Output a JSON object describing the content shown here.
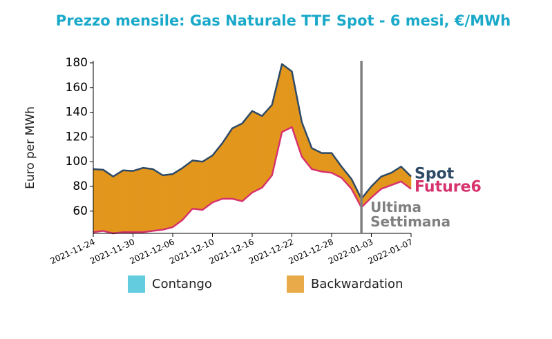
{
  "chart_data": {
    "type": "line",
    "title": "Prezzo mensile: Gas Naturale TTF Spot - 6 mesi, €/MWh",
    "y_label": "Euro per MWh",
    "categories": [
      "2021-11-24",
      null,
      null,
      null,
      "2021-11-30",
      null,
      null,
      null,
      "2021-12-06",
      null,
      null,
      null,
      "2021-12-10",
      null,
      null,
      null,
      "2021-12-16",
      null,
      null,
      null,
      "2021-12-22",
      null,
      null,
      null,
      "2021-12-28",
      null,
      null,
      null,
      "2022-01-03",
      null,
      null,
      null,
      "2022-01-07"
    ],
    "series": [
      {
        "name": "Spot",
        "color": "#2e4a66",
        "values": [
          94,
          93.5,
          88,
          93,
          92.5,
          95,
          94,
          89,
          90,
          95,
          101,
          100,
          105,
          115,
          127,
          131,
          141,
          137,
          146,
          179,
          173,
          132,
          111,
          107,
          107,
          96,
          86,
          70,
          80,
          88,
          91,
          96,
          88
        ]
      },
      {
        "name": "Future6",
        "color": "#d6336c",
        "values": [
          43,
          44,
          42,
          43,
          43,
          43,
          44,
          45,
          47,
          53,
          62,
          61,
          67,
          70,
          70,
          68,
          75,
          79,
          89,
          124,
          128,
          104,
          94,
          92,
          91,
          87,
          78,
          63,
          71,
          78,
          81,
          84,
          78
        ]
      }
    ],
    "fills": [
      {
        "name": "Contango",
        "color": "#3cbfd7"
      },
      {
        "name": "Backwardation",
        "color": "#e3961c"
      }
    ],
    "vline": {
      "index": 27,
      "label": "Ultima Settimana",
      "color": "#808080"
    },
    "ylim": [
      42,
      181
    ],
    "yticks": [
      60,
      80,
      100,
      120,
      140,
      160,
      180
    ]
  }
}
